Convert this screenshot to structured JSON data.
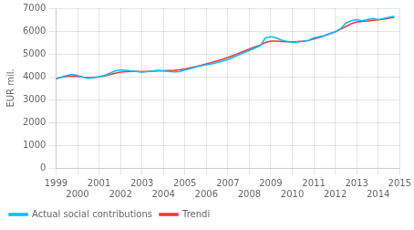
{
  "chart_data": {
    "type": "line",
    "ylabel": "EUR mil.",
    "x": [
      1999.0,
      1999.25,
      1999.5,
      1999.75,
      2000.0,
      2000.25,
      2000.5,
      2000.75,
      2001.0,
      2001.25,
      2001.5,
      2001.75,
      2002.0,
      2002.25,
      2002.5,
      2002.75,
      2003.0,
      2003.25,
      2003.5,
      2003.75,
      2004.0,
      2004.25,
      2004.5,
      2004.75,
      2005.0,
      2005.25,
      2005.5,
      2005.75,
      2006.0,
      2006.25,
      2006.5,
      2006.75,
      2007.0,
      2007.25,
      2007.5,
      2007.75,
      2008.0,
      2008.25,
      2008.5,
      2008.75,
      2009.0,
      2009.25,
      2009.5,
      2009.75,
      2010.0,
      2010.25,
      2010.5,
      2010.75,
      2011.0,
      2011.25,
      2011.5,
      2011.75,
      2012.0,
      2012.25,
      2012.5,
      2012.75,
      2013.0,
      2013.25,
      2013.5,
      2013.75,
      2014.0,
      2014.25,
      2014.5,
      2014.75
    ],
    "series": [
      {
        "name": "Actual social contributions",
        "color": "#00bfff",
        "values": [
          3900,
          3980,
          4050,
          4100,
          4050,
          3980,
          3930,
          3950,
          4000,
          4050,
          4150,
          4250,
          4300,
          4280,
          4250,
          4230,
          4200,
          4220,
          4250,
          4280,
          4250,
          4230,
          4210,
          4220,
          4300,
          4350,
          4420,
          4480,
          4520,
          4560,
          4620,
          4680,
          4750,
          4850,
          4950,
          5050,
          5150,
          5250,
          5350,
          5700,
          5750,
          5700,
          5600,
          5550,
          5500,
          5520,
          5550,
          5580,
          5700,
          5750,
          5800,
          5900,
          5950,
          6100,
          6350,
          6450,
          6500,
          6450,
          6500,
          6550,
          6500,
          6550,
          6600,
          6650
        ]
      },
      {
        "name": "Trendi",
        "color": "#ff3333",
        "values": [
          3920,
          3970,
          4010,
          4030,
          4010,
          3980,
          3960,
          3970,
          3990,
          4030,
          4090,
          4150,
          4200,
          4220,
          4230,
          4230,
          4220,
          4230,
          4240,
          4250,
          4260,
          4270,
          4280,
          4300,
          4340,
          4390,
          4440,
          4500,
          4560,
          4620,
          4690,
          4760,
          4840,
          4930,
          5020,
          5120,
          5210,
          5300,
          5380,
          5500,
          5560,
          5560,
          5540,
          5530,
          5530,
          5540,
          5560,
          5590,
          5650,
          5720,
          5790,
          5880,
          5970,
          6080,
          6200,
          6320,
          6400,
          6420,
          6440,
          6470,
          6490,
          6520,
          6560,
          6600
        ]
      }
    ],
    "xlim": [
      1999.0,
      2015.0
    ],
    "xticks": [
      1999,
      2000,
      2001,
      2002,
      2003,
      2004,
      2005,
      2006,
      2007,
      2008,
      2009,
      2010,
      2011,
      2012,
      2013,
      2014,
      2015
    ],
    "ylim": [
      0,
      7000
    ],
    "yticks": [
      0,
      1000,
      2000,
      3000,
      4000,
      5000,
      6000,
      7000
    ],
    "grid": true,
    "legend": "lower left"
  }
}
